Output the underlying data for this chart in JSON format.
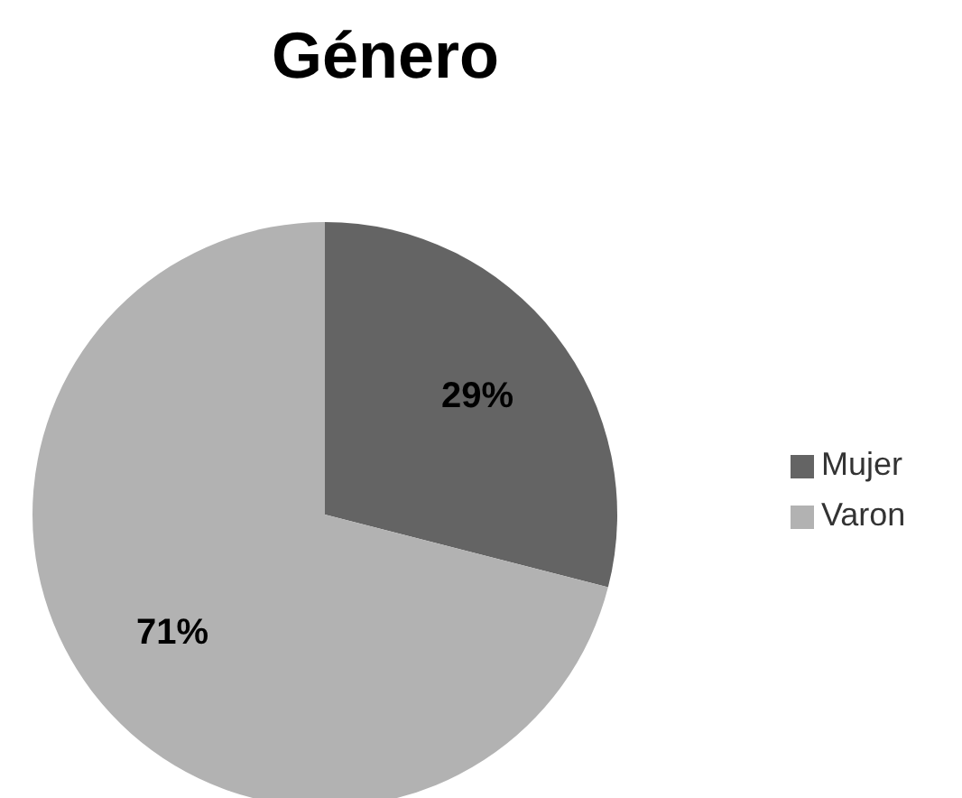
{
  "chart_data": {
    "type": "pie",
    "title": "Género",
    "categories": [
      "Mujer",
      "Varon"
    ],
    "values": [
      29,
      71
    ],
    "colors": [
      "#646464",
      "#b2b2b2"
    ],
    "value_labels": [
      "29%",
      "71%"
    ],
    "legend": "right"
  }
}
